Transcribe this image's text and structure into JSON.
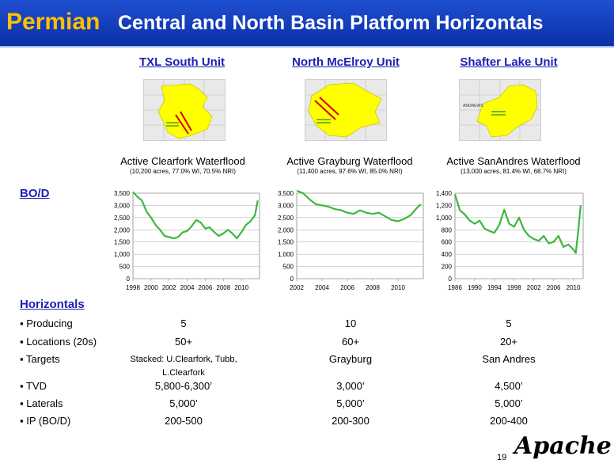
{
  "header": {
    "left": "Permian",
    "right": "Central and North Basin Platform Horizontals"
  },
  "units": [
    {
      "title": "TXL South Unit",
      "map_label": "",
      "chart_title": "Active Clearfork Waterflood",
      "chart_sub": "(10,200 acres, 77.0% WI, 70.5% NRI)"
    },
    {
      "title": "North McElroy Unit",
      "map_label": "",
      "chart_title": "Active Grayburg Waterflood",
      "chart_sub": "(11,400 acres, 97.6% WI, 85.0% NRI)"
    },
    {
      "title": "Shafter Lake Unit",
      "map_label": "ANDREWS",
      "chart_title": "Active SanAndres Waterflood",
      "chart_sub": "(13,000 acres, 81.4% WI, 68.7% NRI)"
    }
  ],
  "bod_label": "BO/D",
  "horizontals_label": "Horizontals",
  "rows": [
    {
      "label": "Producing",
      "values": [
        "5",
        "10",
        "5"
      ]
    },
    {
      "label": "Locations (20s)",
      "values": [
        "50+",
        "60+",
        "20+"
      ]
    },
    {
      "label": "Targets",
      "values": [
        "Stacked: U.Clearfork, Tubb, L.Clearfork",
        "Grayburg",
        "San Andres"
      ]
    },
    {
      "label": "TVD",
      "values": [
        "5,800-6,300’",
        "3,000’",
        "4,500’"
      ]
    },
    {
      "label": "Laterals",
      "values": [
        "5,000’",
        "5,000’",
        "5,000’"
      ]
    },
    {
      "label": "IP (BO/D)",
      "values": [
        "200-500",
        "200-300",
        "200-400"
      ]
    }
  ],
  "page_number": "19",
  "logo": "Apache",
  "colors": {
    "header_bg": "#1438c4",
    "title_gold": "#ffc000",
    "unit_title": "#1f1fb4",
    "line": "#3cb83c",
    "map_fill": "#ffff00"
  },
  "chart_data": [
    {
      "type": "line",
      "title": "",
      "xlabel": "",
      "ylabel": "",
      "xlim": [
        1998,
        2012
      ],
      "ylim": [
        0,
        3500
      ],
      "xticks": [
        "1998",
        "2000",
        "2002",
        "2004",
        "2006",
        "2008",
        "2010"
      ],
      "yticks": [
        "0",
        "500",
        "1,000",
        "1,500",
        "2,000",
        "2,500",
        "3,000",
        "3,500"
      ],
      "series": [
        {
          "x": [
            1998,
            1998.5,
            1999,
            1999.5,
            2000,
            2000.5,
            2001,
            2001.5,
            2002,
            2002.5,
            2003,
            2003.5,
            2004,
            2004.5,
            2005,
            2005.5,
            2006,
            2006.5,
            2007,
            2007.5,
            2008,
            2008.5,
            2009,
            2009.5,
            2010,
            2010.5,
            2011,
            2011.5,
            2011.8
          ],
          "y": [
            3550,
            3350,
            3200,
            2750,
            2500,
            2200,
            2000,
            1750,
            1700,
            1650,
            1700,
            1900,
            1950,
            2150,
            2400,
            2300,
            2050,
            2100,
            1900,
            1750,
            1850,
            2000,
            1850,
            1650,
            1900,
            2200,
            2350,
            2600,
            3200
          ]
        }
      ]
    },
    {
      "type": "line",
      "title": "",
      "xlabel": "",
      "ylabel": "",
      "xlim": [
        2002,
        2012
      ],
      "ylim": [
        0,
        3500
      ],
      "xticks": [
        "2002",
        "2004",
        "2006",
        "2008",
        "2010"
      ],
      "yticks": [
        "0",
        "500",
        "1,000",
        "1,500",
        "2,000",
        "2,500",
        "3,000",
        "3,500"
      ],
      "series": [
        {
          "x": [
            2002,
            2002.5,
            2003,
            2003.5,
            2004,
            2004.5,
            2005,
            2005.5,
            2006,
            2006.5,
            2007,
            2007.5,
            2008,
            2008.5,
            2009,
            2009.5,
            2010,
            2010.5,
            2011,
            2011.5,
            2011.8
          ],
          "y": [
            3600,
            3500,
            3250,
            3050,
            3000,
            2950,
            2850,
            2800,
            2700,
            2650,
            2800,
            2700,
            2650,
            2700,
            2550,
            2400,
            2350,
            2450,
            2600,
            2900,
            3050
          ]
        }
      ]
    },
    {
      "type": "line",
      "title": "",
      "xlabel": "",
      "ylabel": "",
      "xlim": [
        1986,
        2012
      ],
      "ylim": [
        0,
        1400
      ],
      "xticks": [
        "1986",
        "1990",
        "1994",
        "1998",
        "2002",
        "2006",
        "2010"
      ],
      "yticks": [
        "0",
        "200",
        "400",
        "600",
        "800",
        "1,000",
        "1,200",
        "1,400"
      ],
      "series": [
        {
          "x": [
            1986,
            1987,
            1988,
            1989,
            1990,
            1991,
            1992,
            1993,
            1994,
            1995,
            1996,
            1997,
            1998,
            1999,
            2000,
            2001,
            2002,
            2003,
            2004,
            2005,
            2006,
            2007,
            2008,
            2009,
            2010,
            2010.5,
            2011,
            2011.5
          ],
          "y": [
            1380,
            1120,
            1050,
            950,
            900,
            950,
            820,
            780,
            750,
            880,
            1130,
            900,
            850,
            1000,
            800,
            700,
            650,
            620,
            700,
            580,
            600,
            700,
            520,
            560,
            480,
            420,
            780,
            1200
          ]
        }
      ]
    }
  ]
}
